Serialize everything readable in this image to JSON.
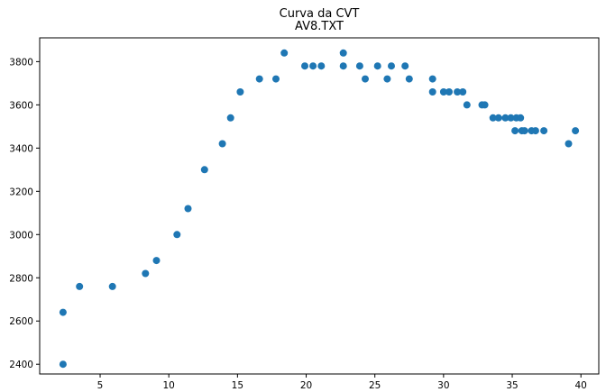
{
  "chart_data": {
    "type": "scatter",
    "title": "Curva da CVT",
    "subtitle": "AV8.TXT",
    "xlabel": "",
    "ylabel": "",
    "xlim": [
      0.6,
      41.3
    ],
    "ylim": [
      2355,
      3910
    ],
    "x_ticks": [
      "5",
      "10",
      "15",
      "20",
      "25",
      "30",
      "35",
      "40"
    ],
    "y_ticks": [
      "2400",
      "2600",
      "2800",
      "3000",
      "3200",
      "3400",
      "3600",
      "3800"
    ],
    "grid": false,
    "marker_color": "#1f77b4",
    "series": [
      {
        "x": [
          2.3,
          2.3,
          3.5,
          5.9,
          8.3,
          9.1,
          10.6,
          11.4,
          12.6,
          13.9,
          14.5,
          15.2,
          16.6,
          17.8,
          18.4,
          19.9,
          20.5,
          21.1,
          22.7,
          22.7,
          23.9,
          24.3,
          25.2,
          25.9,
          26.2,
          27.2,
          27.5,
          29.2,
          29.2,
          30.0,
          30.4,
          31.0,
          31.4,
          31.7,
          32.8,
          33.0,
          33.6,
          34.0,
          34.5,
          34.9,
          35.2,
          35.3,
          35.6,
          35.7,
          35.9,
          36.4,
          36.7,
          37.3,
          39.1,
          39.6
        ],
        "y": [
          2400,
          2640,
          2760,
          2760,
          2820,
          2880,
          3000,
          3120,
          3300,
          3420,
          3540,
          3660,
          3720,
          3720,
          3840,
          3780,
          3780,
          3780,
          3840,
          3780,
          3780,
          3720,
          3780,
          3720,
          3780,
          3780,
          3720,
          3720,
          3660,
          3660,
          3660,
          3660,
          3660,
          3600,
          3600,
          3600,
          3540,
          3540,
          3540,
          3540,
          3480,
          3540,
          3540,
          3480,
          3480,
          3480,
          3480,
          3480,
          3420,
          3480
        ]
      }
    ]
  }
}
